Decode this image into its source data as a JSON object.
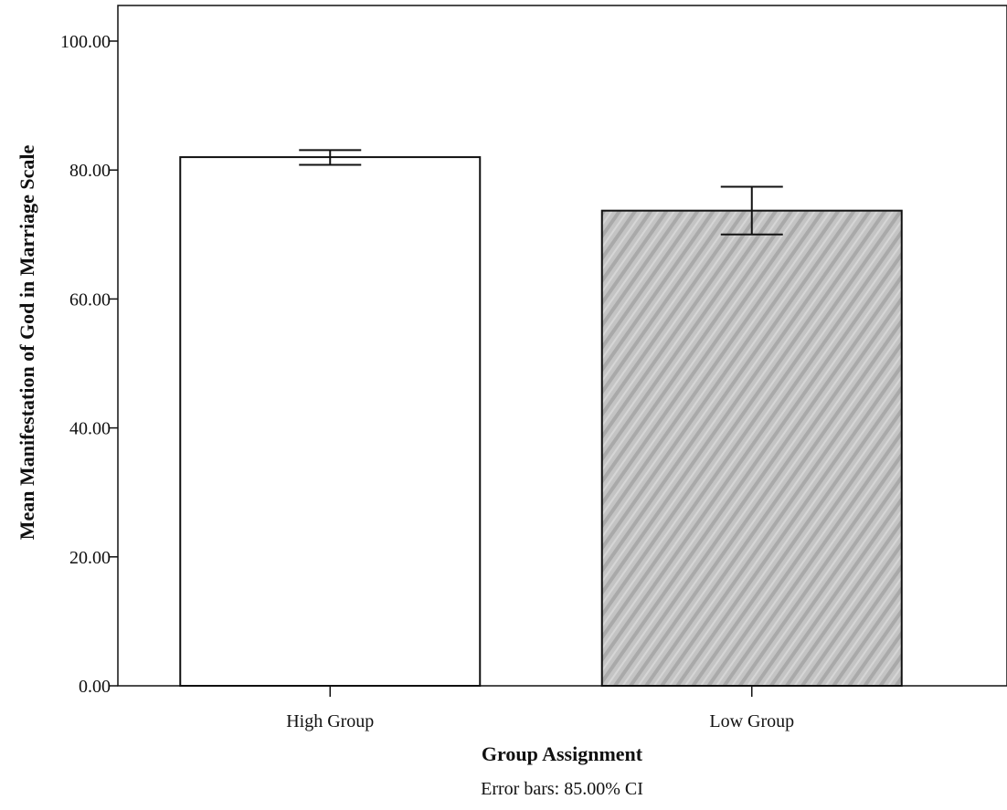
{
  "chart_data": {
    "type": "bar",
    "categories": [
      "High Group",
      "Low Group"
    ],
    "values": [
      82.0,
      73.7
    ],
    "error_bars": [
      {
        "lower": 80.8,
        "upper": 83.1
      },
      {
        "lower": 70.0,
        "upper": 77.4
      }
    ],
    "bar_fills": [
      "#ffffff",
      "#bdbdbd"
    ],
    "xlabel": "Group Assignment",
    "ylabel": "Mean Manifestation of God in Marriage Scale",
    "ylim": [
      0,
      104
    ],
    "yticks": [
      0,
      20,
      40,
      60,
      80,
      100
    ],
    "ytick_labels": [
      "0.00",
      "20.00",
      "40.00",
      "60.00",
      "80.00",
      "100.00"
    ],
    "note": "Error bars: 85.00% CI",
    "grid": false,
    "legend": "none"
  }
}
